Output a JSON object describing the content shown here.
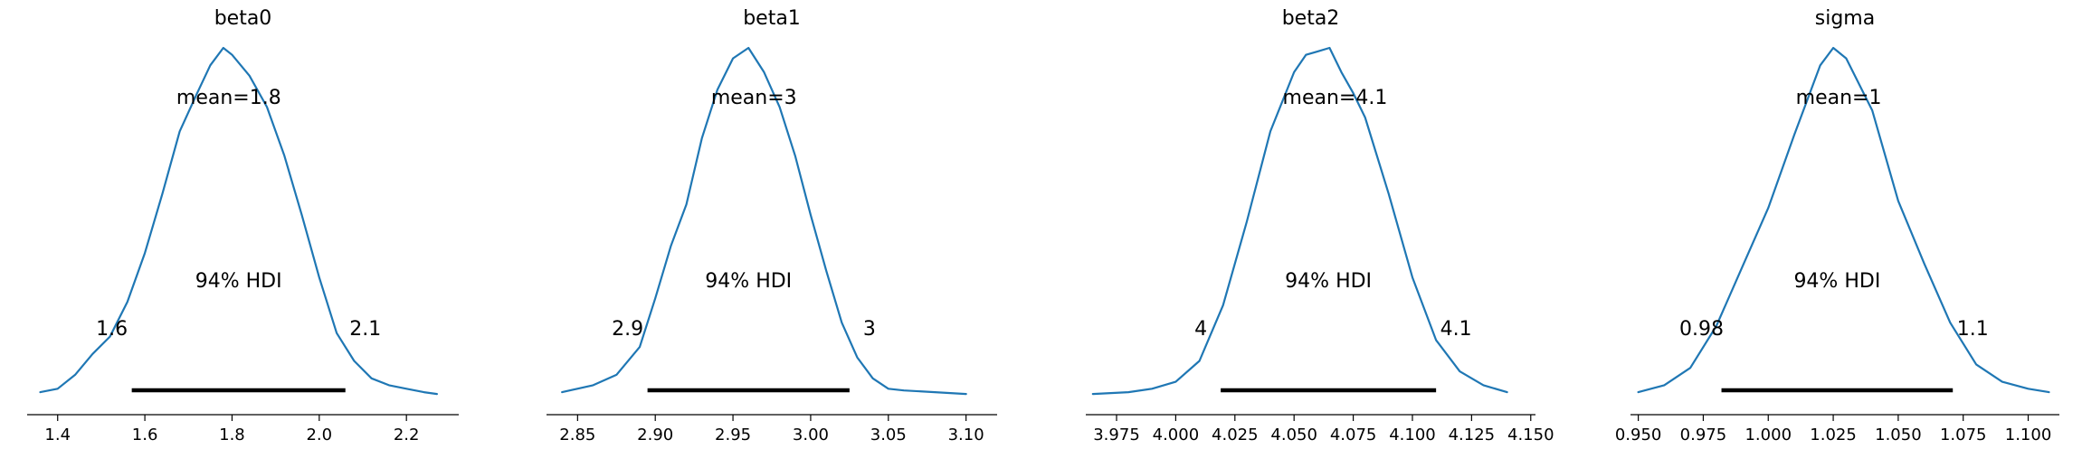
{
  "chart_data": [
    {
      "type": "line",
      "title": "beta0",
      "xlim": [
        1.33,
        2.32
      ],
      "xticks": [
        1.4,
        1.6,
        1.8,
        2.0,
        2.2
      ],
      "xtick_labels": [
        "1.4",
        "1.6",
        "1.8",
        "2.0",
        "2.2"
      ],
      "density": {
        "x": [
          1.36,
          1.4,
          1.44,
          1.48,
          1.52,
          1.56,
          1.6,
          1.64,
          1.68,
          1.72,
          1.75,
          1.78,
          1.8,
          1.84,
          1.88,
          1.92,
          1.96,
          2.0,
          2.04,
          2.08,
          2.12,
          2.16,
          2.2,
          2.24,
          2.27
        ],
        "y": [
          0.01,
          0.02,
          0.06,
          0.12,
          0.17,
          0.27,
          0.41,
          0.58,
          0.76,
          0.87,
          0.95,
          1.0,
          0.98,
          0.92,
          0.83,
          0.69,
          0.52,
          0.34,
          0.18,
          0.1,
          0.05,
          0.03,
          0.02,
          0.01,
          0.005
        ]
      },
      "mean_label": "mean=1.8",
      "hdi_label": "94% HDI",
      "hdi": [
        1.57,
        2.06
      ],
      "hdi_low_label": "1.6",
      "hdi_high_label": "2.1",
      "color": "#1f77b4"
    },
    {
      "type": "line",
      "title": "beta1",
      "xlim": [
        2.83,
        3.12
      ],
      "xticks": [
        2.85,
        2.9,
        2.95,
        3.0,
        3.05,
        3.1
      ],
      "xtick_labels": [
        "2.85",
        "2.90",
        "2.95",
        "3.00",
        "3.05",
        "3.10"
      ],
      "density": {
        "x": [
          2.84,
          2.86,
          2.875,
          2.89,
          2.9,
          2.91,
          2.92,
          2.93,
          2.94,
          2.95,
          2.96,
          2.97,
          2.98,
          2.99,
          3.0,
          3.01,
          3.02,
          3.03,
          3.04,
          3.05,
          3.06,
          3.08,
          3.1
        ],
        "y": [
          0.01,
          0.03,
          0.06,
          0.14,
          0.28,
          0.43,
          0.55,
          0.74,
          0.88,
          0.97,
          1.0,
          0.93,
          0.83,
          0.69,
          0.52,
          0.36,
          0.21,
          0.11,
          0.05,
          0.02,
          0.015,
          0.01,
          0.005
        ]
      },
      "mean_label": "mean=3",
      "hdi_label": "94% HDI",
      "hdi": [
        2.895,
        3.025
      ],
      "hdi_low_label": "2.9",
      "hdi_high_label": "3",
      "color": "#1f77b4"
    },
    {
      "type": "line",
      "title": "beta2",
      "xlim": [
        3.962,
        4.152
      ],
      "xticks": [
        3.975,
        4.0,
        4.025,
        4.05,
        4.075,
        4.1,
        4.125,
        4.15
      ],
      "xtick_labels": [
        "3.975",
        "4.000",
        "4.025",
        "4.050",
        "4.075",
        "4.100",
        "4.125",
        "4.150"
      ],
      "density": {
        "x": [
          3.965,
          3.98,
          3.99,
          4.0,
          4.01,
          4.02,
          4.03,
          4.04,
          4.05,
          4.055,
          4.06,
          4.065,
          4.07,
          4.075,
          4.08,
          4.09,
          4.1,
          4.11,
          4.12,
          4.13,
          4.14
        ],
        "y": [
          0.005,
          0.01,
          0.02,
          0.04,
          0.1,
          0.26,
          0.5,
          0.76,
          0.93,
          0.98,
          0.99,
          1.0,
          0.93,
          0.87,
          0.8,
          0.58,
          0.34,
          0.16,
          0.07,
          0.03,
          0.01
        ]
      },
      "mean_label": "mean=4.1",
      "hdi_label": "94% HDI",
      "hdi": [
        4.019,
        4.11
      ],
      "hdi_low_label": "4",
      "hdi_high_label": "4.1",
      "color": "#1f77b4"
    },
    {
      "type": "line",
      "title": "sigma",
      "xlim": [
        0.947,
        1.112
      ],
      "xticks": [
        0.95,
        0.975,
        1.0,
        1.025,
        1.05,
        1.075,
        1.1
      ],
      "xtick_labels": [
        "0.950",
        "0.975",
        "1.000",
        "1.025",
        "1.050",
        "1.075",
        "1.100"
      ],
      "density": {
        "x": [
          0.95,
          0.96,
          0.97,
          0.98,
          0.99,
          1.0,
          1.01,
          1.02,
          1.025,
          1.03,
          1.04,
          1.05,
          1.06,
          1.07,
          1.08,
          1.09,
          1.1,
          1.108
        ],
        "y": [
          0.01,
          0.03,
          0.08,
          0.2,
          0.37,
          0.54,
          0.75,
          0.95,
          1.0,
          0.97,
          0.82,
          0.56,
          0.38,
          0.21,
          0.09,
          0.04,
          0.02,
          0.01
        ]
      },
      "mean_label": "mean=1",
      "hdi_label": "94% HDI",
      "hdi": [
        0.982,
        1.071
      ],
      "hdi_low_label": "0.98",
      "hdi_high_label": "1.1",
      "color": "#1f77b4"
    }
  ]
}
